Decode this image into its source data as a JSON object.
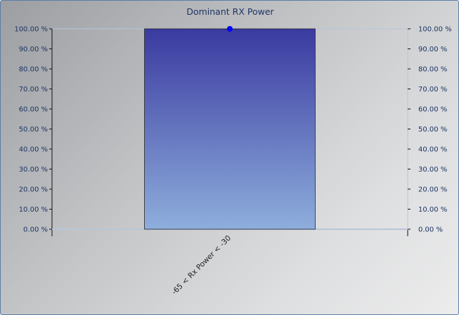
{
  "chart_data": {
    "type": "bar",
    "title": "Dominant RX Power",
    "xlabel": "",
    "ylabel": "",
    "categories": [
      "-65 < Rx Power < -30"
    ],
    "series": [
      {
        "type": "bar",
        "values": [
          100.0
        ]
      },
      {
        "type": "line",
        "values": [
          100.0
        ]
      }
    ],
    "ylim": [
      0,
      100
    ],
    "y_ticks": [
      "0.00 %",
      "10.00 %",
      "20.00 %",
      "30.00 %",
      "40.00 %",
      "50.00 %",
      "60.00 %",
      "70.00 %",
      "80.00 %",
      "90.00 %",
      "100.00 %"
    ],
    "y_axes": "left and right",
    "grid": false,
    "colors": {
      "bar_top": "#3a3aa0",
      "bar_bottom": "#8eaedc",
      "marker": "#0000ff",
      "axis": "#b7c6dc",
      "text": "#1e3566"
    }
  }
}
